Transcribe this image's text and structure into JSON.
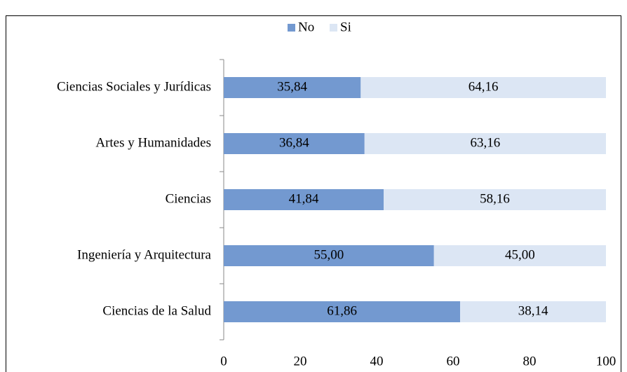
{
  "chart_data": {
    "type": "stacked-bar-horizontal",
    "categories": [
      "Ciencias Sociales y Jurídicas",
      "Artes y Humanidades",
      "Ciencias",
      "Ingeniería y Arquitectura",
      "Ciencias de la Salud"
    ],
    "series": [
      {
        "name": "No",
        "color": "#7399d0",
        "values": [
          35.84,
          36.84,
          41.84,
          55.0,
          61.86
        ],
        "value_labels": [
          "35,84",
          "36,84",
          "41,84",
          "55,00",
          "61,86"
        ]
      },
      {
        "name": "Si",
        "color": "#dce6f4",
        "values": [
          64.16,
          63.16,
          58.16,
          45.0,
          38.14
        ],
        "value_labels": [
          "64,16",
          "63,16",
          "58,16",
          "45,00",
          "38,14"
        ]
      }
    ],
    "xlim": [
      0,
      100
    ],
    "xticks": [
      0,
      20,
      40,
      60,
      80,
      100
    ],
    "grid": false,
    "legend": "top"
  }
}
